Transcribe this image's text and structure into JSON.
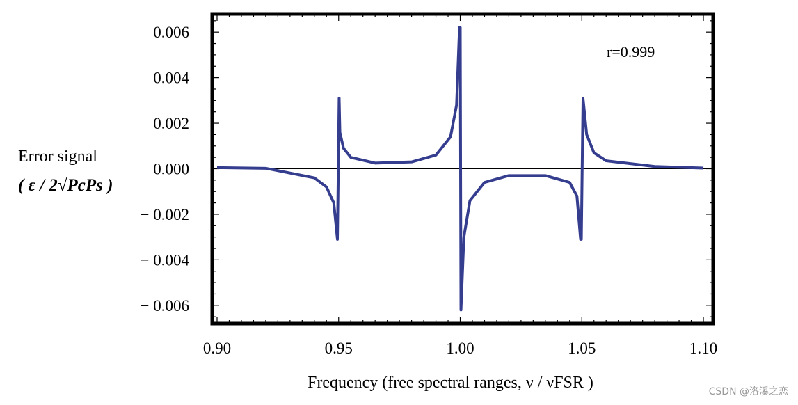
{
  "chart_data": {
    "type": "line",
    "title": "",
    "xlabel": "Frequency (free spectral ranges, ν / νFSR )",
    "ylabel": "Error signal",
    "ylabel_formula": "( ε / 2√PcPs )",
    "annotation": "r=0.999",
    "xlim": [
      0.898,
      1.104
    ],
    "ylim": [
      -0.0068,
      0.0068
    ],
    "x_ticks": [
      "0.90",
      "0.95",
      "1.00",
      "1.05",
      "1.10"
    ],
    "y_ticks": [
      "0.006",
      "0.004",
      "0.002",
      "0.000",
      "− 0.002",
      "− 0.004",
      "− 0.006"
    ],
    "grid": false,
    "series": [
      {
        "color": "#353d8f",
        "r": 0.999,
        "centers": [
          0.95,
          1.0,
          1.05
        ],
        "peak_amplitudes": [
          0.0031,
          0.0062,
          0.0031
        ],
        "points_x": [
          0.9,
          0.92,
          0.94,
          0.945,
          0.948,
          0.9495,
          0.9502,
          0.9505,
          0.952,
          0.955,
          0.965,
          0.98,
          0.99,
          0.996,
          0.9985,
          0.9997,
          1.0,
          1.0003,
          1.0015,
          1.004,
          1.01,
          1.02,
          1.035,
          1.045,
          1.048,
          1.0495,
          1.0498,
          1.0505,
          1.052,
          1.055,
          1.06,
          1.08,
          1.1
        ],
        "points_y": [
          5e-05,
          2e-05,
          -0.0004,
          -0.0008,
          -0.0015,
          -0.0031,
          0.0031,
          0.0016,
          0.0009,
          0.0005,
          0.00025,
          0.0003,
          0.0006,
          0.0014,
          0.0028,
          0.0062,
          0.0062,
          -0.0062,
          -0.003,
          -0.0014,
          -0.0006,
          -0.0003,
          -0.0003,
          -0.0006,
          -0.0012,
          -0.0031,
          -0.0031,
          0.0031,
          0.0015,
          0.0007,
          0.00035,
          0.0001,
          3e-05
        ]
      }
    ]
  },
  "watermark": "CSDN @洛溪之恋"
}
